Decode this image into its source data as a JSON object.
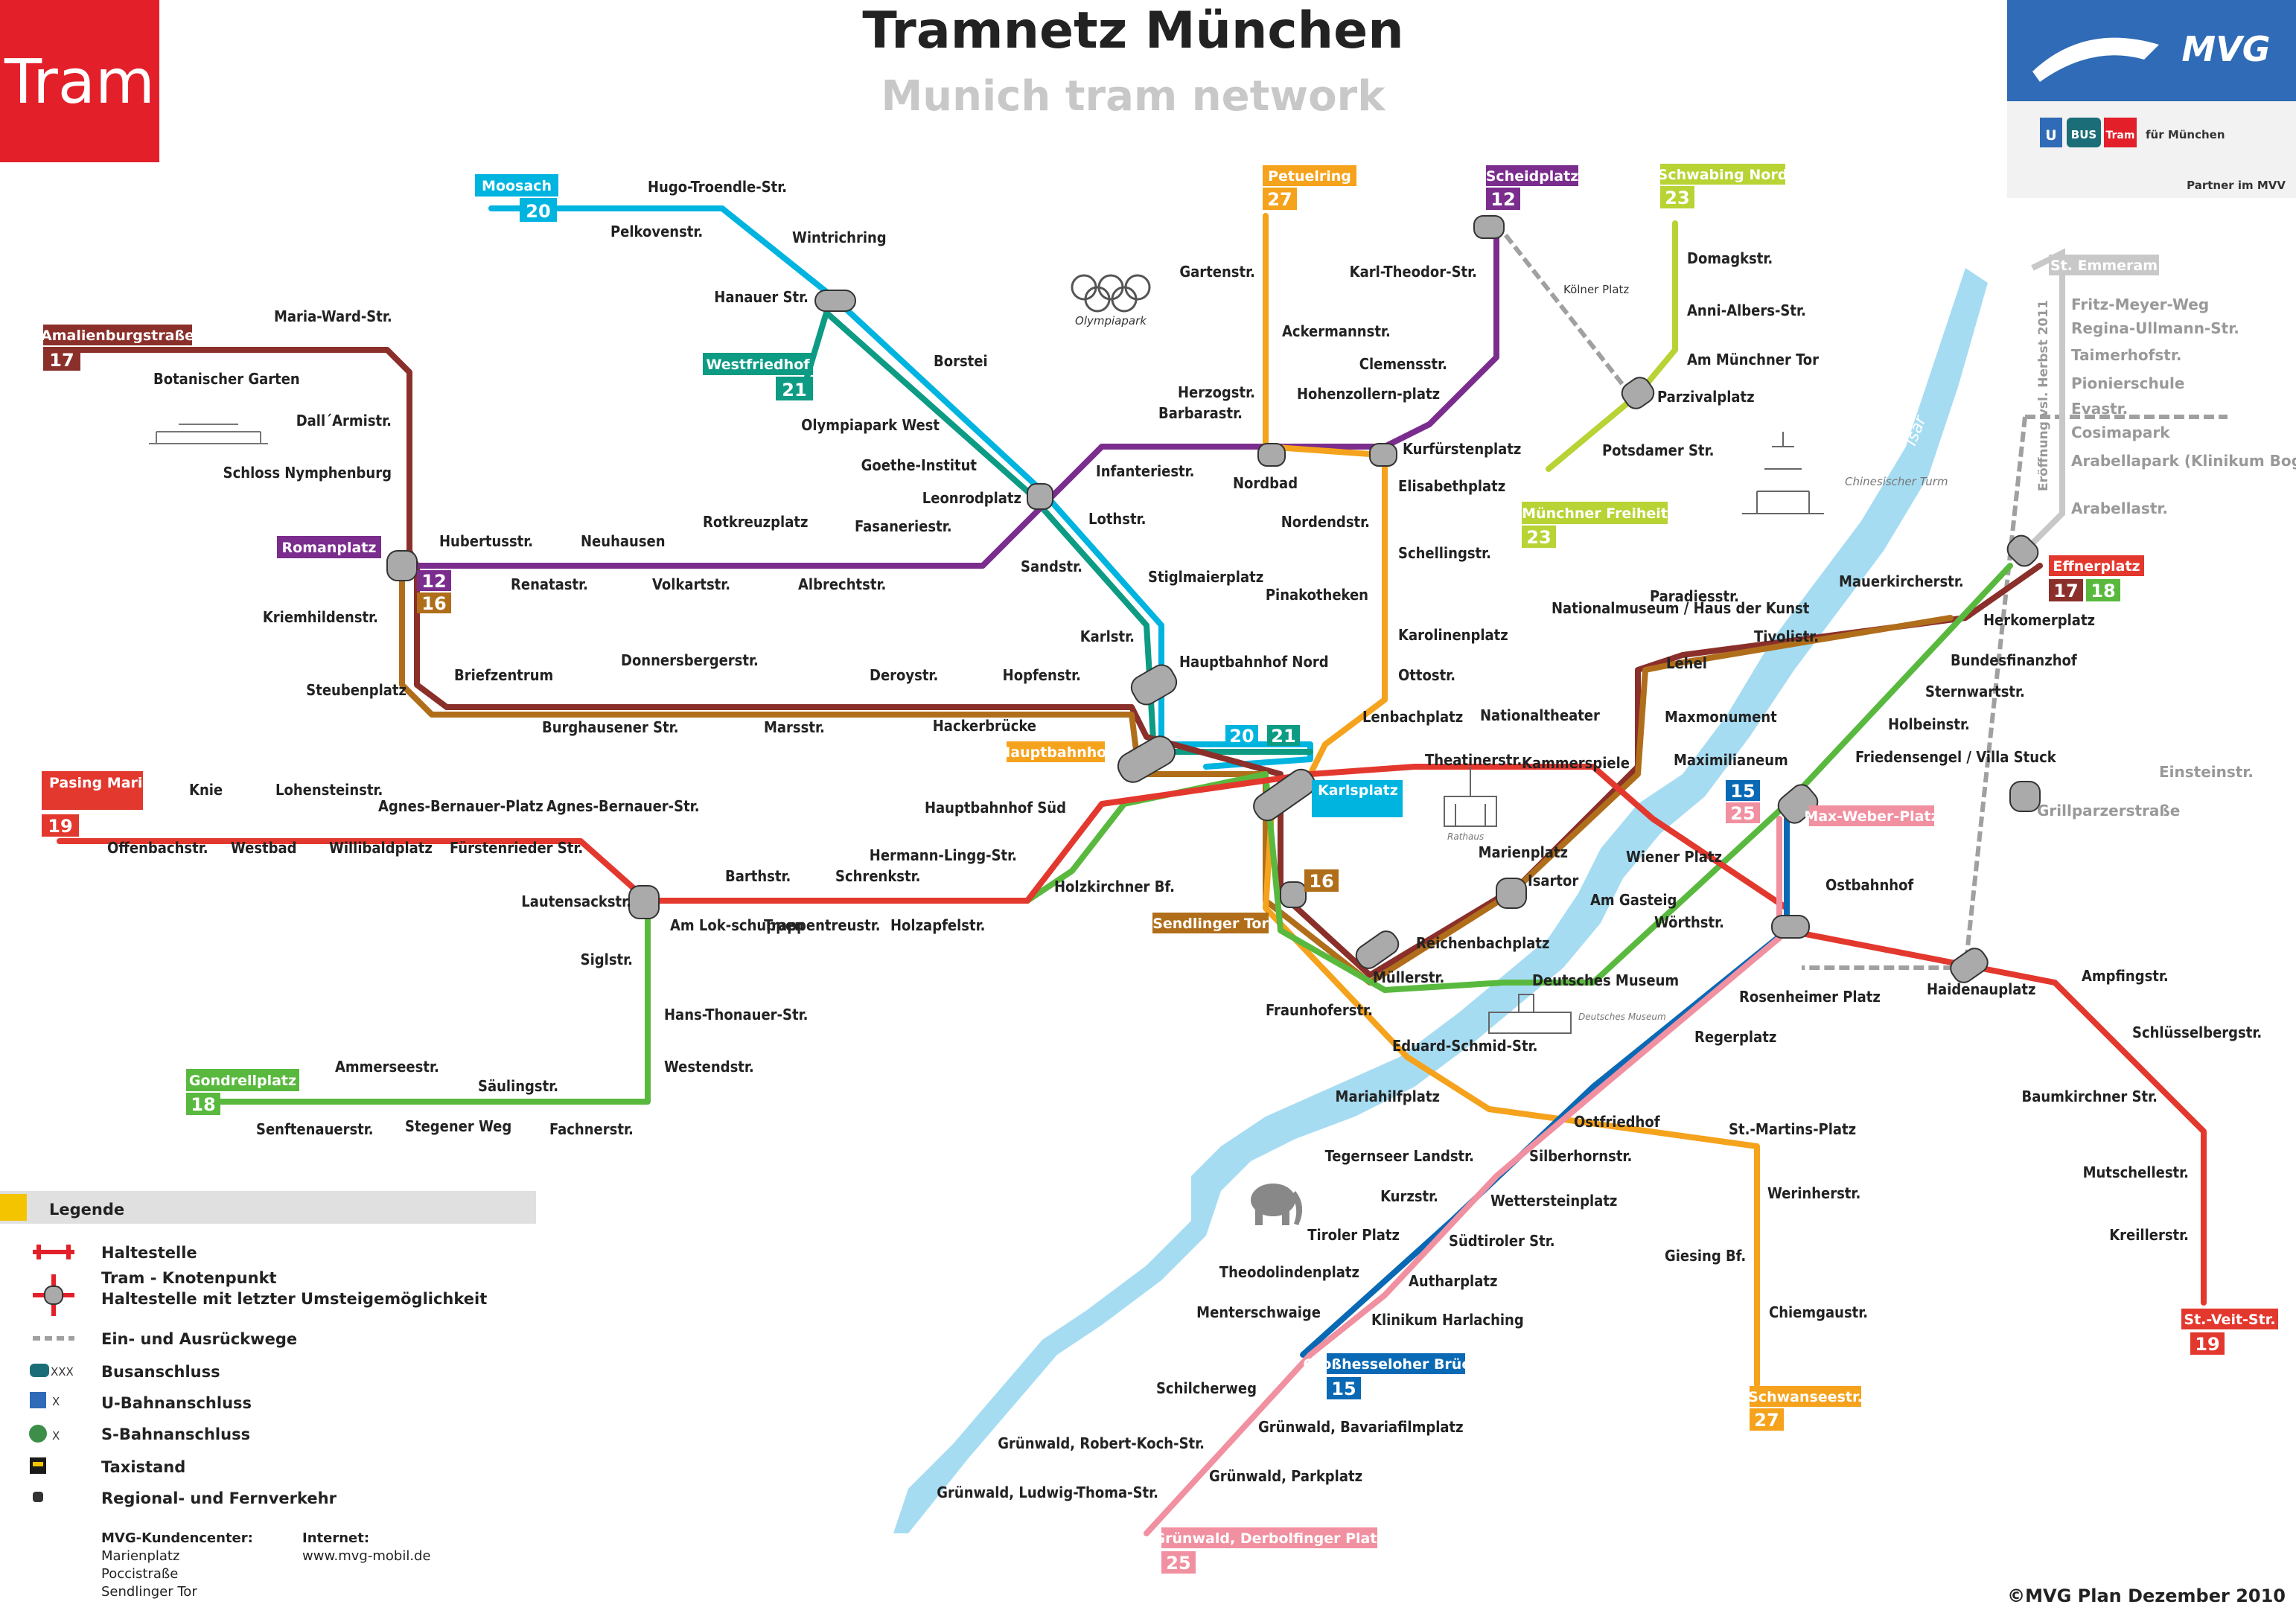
{
  "header": {
    "title": "Tramnetz München",
    "subtitle": "Munich tram network",
    "badge": "Tram",
    "logo_text": "MVG",
    "logo_tagline": "für München",
    "logo_modes": [
      "U",
      "BUS",
      "Tram"
    ],
    "partner": "Partner im MVV"
  },
  "colors": {
    "tram_red": "#e3202a",
    "line_12": "#7b2d8e",
    "line_16": "#b06e1b",
    "line_17": "#8b2f2a",
    "line_18": "#59b93e",
    "line_19": "#e3382e",
    "line_20": "#00b4e0",
    "line_21": "#0d9b84",
    "line_23": "#b7d334",
    "line_25": "#f190a0",
    "line_27": "#f5a21c",
    "line_15": "#0a69b4",
    "isar": "#a6dcf2",
    "depot_grey": "#a0a0a0"
  },
  "termini": [
    {
      "name": "Moosach",
      "lines": [
        "20"
      ]
    },
    {
      "name": "Amalienburgstraße",
      "lines": [
        "17"
      ]
    },
    {
      "name": "Westfriedhof",
      "lines": [
        "21"
      ]
    },
    {
      "name": "Romanplatz",
      "lines": [
        "12",
        "16"
      ]
    },
    {
      "name": "Petuelring",
      "lines": [
        "27"
      ]
    },
    {
      "name": "Scheidplatz",
      "lines": [
        "12"
      ]
    },
    {
      "name": "Schwabing Nord",
      "lines": [
        "23"
      ]
    },
    {
      "name": "Münchner Freiheit",
      "lines": [
        "23"
      ]
    },
    {
      "name": "Pasing Marienplatz",
      "lines": [
        "19"
      ]
    },
    {
      "name": "Gondrellplatz",
      "lines": [
        "18"
      ]
    },
    {
      "name": "Effnerplatz",
      "lines": [
        "17",
        "18"
      ]
    },
    {
      "name": "Sendlinger Tor",
      "lines": [
        "16"
      ]
    },
    {
      "name": "Karlsplatz (Stachus)",
      "lines": []
    },
    {
      "name": "Hauptbahnhof",
      "lines": []
    },
    {
      "name": "Max-Weber-Platz",
      "lines": []
    },
    {
      "name": "Großhesseloher Brücke",
      "lines": [
        "15"
      ]
    },
    {
      "name": "Grünwald, Derbolfinger Platz",
      "lines": [
        "25"
      ]
    },
    {
      "name": "Schwanseestr.",
      "lines": [
        "27"
      ]
    },
    {
      "name": "St.-Veit-Str.",
      "lines": [
        "19"
      ]
    },
    {
      "name": "St. Emmeram",
      "lines": []
    }
  ],
  "stations": {
    "hugo_troendle": "Hugo-Troendle-Str.",
    "pelkovenstr": "Pelkovenstr.",
    "wintrichring": "Wintrichring",
    "hanauer": "Hanauer Str.",
    "borstei": "Borstei",
    "olympiapark_west": "Olympiapark West",
    "goethe_institut": "Goethe-Institut",
    "leonrodplatz": "Leonrodplatz",
    "lothstr": "Lothstr.",
    "sandstr": "Sandstr.",
    "stiglmaierplatz": "Stiglmaierplatz",
    "karlstr": "Karlstr.",
    "hbf_nord": "Hauptbahnhof Nord",
    "hopfenstr": "Hopfenstr.",
    "hackerbruecke": "Hackerbrücke",
    "hbf_sued": "Hauptbahnhof Süd",
    "hermann_lingg": "Hermann-Lingg-Str.",
    "holzkirchner": "Holzkirchner Bf.",
    "maria_ward": "Maria-Ward-Str.",
    "botanischer": "Botanischer Garten",
    "dall_armi": "Dall´Armistr.",
    "schloss": "Schloss Nymphenburg",
    "hubertusstr": "Hubertusstr.",
    "neuhausen": "Neuhausen",
    "rotkreuzplatz": "Rotkreuzplatz",
    "fasaneriestr": "Fasaneriestr.",
    "renatastr": "Renatastr.",
    "volkartstr": "Volkartstr.",
    "albrechtstr": "Albrechtstr.",
    "kriemhildenstr": "Kriemhildenstr.",
    "steubenplatz": "Steubenplatz",
    "briefzentrum": "Briefzentrum",
    "donnersberger": "Donnersbergerstr.",
    "deroystr": "Deroystr.",
    "burghausener": "Burghausener Str.",
    "marsstr": "Marsstr.",
    "infanteriestr": "Infanteriestr.",
    "herzogstr": "Herzogstr.",
    "barbarastr": "Barbarastr.",
    "nordbad": "Nordbad",
    "hohenzollernplatz": "Hohenzollern-platz",
    "kurfuerstenplatz": "Kurfürstenplatz",
    "gartenstr": "Gartenstr.",
    "ackermannstr": "Ackermannstr.",
    "karl_theodor": "Karl-Theodor-Str.",
    "clemensstr": "Clemensstr.",
    "koelner_platz": "Kölner Platz",
    "domagkstr": "Domagkstr.",
    "anni_albers": "Anni-Albers-Str.",
    "am_muenchner_tor": "Am Münchner Tor",
    "parzivalplatz": "Parzivalplatz",
    "potsdamer": "Potsdamer Str.",
    "elisabethplatz": "Elisabethplatz",
    "nordendstr": "Nordendstr.",
    "schellingstr": "Schellingstr.",
    "pinakotheken": "Pinakotheken",
    "karolinenplatz": "Karolinenplatz",
    "ottostr": "Ottostr.",
    "lenbachplatz": "Lenbachplatz",
    "nationaltheater": "Nationaltheater",
    "theatinerstr": "Theatinerstr.",
    "kammerspiele": "Kammerspiele",
    "maxmonument": "Maxmonument",
    "maximilianeum": "Maximilianeum",
    "marienplatz": "Marienplatz",
    "isartor": "Isartor",
    "am_gasteig": "Am Gasteig",
    "wiener_platz": "Wiener Platz",
    "reichenbachplatz": "Reichenbachplatz",
    "muellerstr": "Müllerstr.",
    "deutsches_museum": "Deutsches Museum",
    "fraunhoferstr": "Fraunhoferstr.",
    "eduard_schmid": "Eduard-Schmid-Str.",
    "mariahilfplatz": "Mariahilfplatz",
    "woerthstr": "Wörthstr.",
    "rosenheimer": "Rosenheimer Platz",
    "regerplatz": "Regerplatz",
    "ostfriedhof": "Ostfriedhof",
    "st_martins": "St.-Martins-Platz",
    "tegernseer": "Tegernseer Landstr.",
    "silberhornstr": "Silberhornstr.",
    "kurzstr": "Kurzstr.",
    "wettersteinplatz": "Wettersteinplatz",
    "tiroler": "Tiroler Platz",
    "suedtiroler": "Südtiroler Str.",
    "theodolindenplatz": "Theodolindenplatz",
    "autharipatz": "Autharplatz",
    "menterschwaige": "Menterschwaige",
    "klinikum_harlaching": "Klinikum Harlaching",
    "schilcherweg": "Schilcherweg",
    "gw_bavaria": "Grünwald, Bavariafilmplatz",
    "gw_robert": "Grünwald, Robert-Koch-Str.",
    "gw_parkplatz": "Grünwald, Parkplatz",
    "gw_ludwig": "Grünwald, Ludwig-Thoma-Str.",
    "werinherstr": "Werinherstr.",
    "giesing": "Giesing Bf.",
    "chiemgaustr": "Chiemgaustr.",
    "nationalmuseum": "Nationalmuseum / Haus der Kunst",
    "paradiesstr": "Paradiesstr.",
    "lehel": "Lehel",
    "tivolistr": "Tivolistr.",
    "mauerkircherstr": "Mauerkircherstr.",
    "herkomerplatz": "Herkomerplatz",
    "bundesfinanzhof": "Bundesfinanzhof",
    "sternwartstr": "Sternwartstr.",
    "holbeinstr": "Holbeinstr.",
    "friedensengel": "Friedensengel / Villa Stuck",
    "einsteinstr": "Einsteinstr.",
    "grillparzer": "Grillparzerstraße",
    "ostbahnhof": "Ostbahnhof",
    "haidenauplatz": "Haidenauplatz",
    "ampfingstr": "Ampfingstr.",
    "schluesselberg": "Schlüsselbergstr.",
    "baumkirchner": "Baumkirchner Str.",
    "mutschellestr": "Mutschellestr.",
    "kreillerstr": "Kreillerstr.",
    "knie": "Knie",
    "lohensteinstr": "Lohensteinstr.",
    "agnes_bernauer_platz": "Agnes-Bernauer-Platz",
    "agnes_bernauer_str": "Agnes-Bernauer-Str.",
    "offenbachstr": "Offenbachstr.",
    "westbad": "Westbad",
    "willibaldplatz": "Willibaldplatz",
    "fuerstenrieder": "Fürstenrieder Str.",
    "lautensackstr": "Lautensackstr.",
    "barthstr": "Barthstr.",
    "schrenkstr": "Schrenkstr.",
    "am_lokschuppen": "Am Lok-schuppen",
    "trappentreustr": "Trappentreustr.",
    "holzapfelstr": "Holzapfelstr.",
    "siglstr": "Siglstr.",
    "hans_thonauer": "Hans-Thonauer-Str.",
    "westendstr": "Westendstr.",
    "ammerseestr": "Ammerseestr.",
    "saeulingstr": "Säulingstr.",
    "senftenauerstr": "Senftenauerstr.",
    "stegener": "Stegener Weg",
    "fachnerstr": "Fachnerstr.",
    "st_emmeram_stops": [
      "Fritz-Meyer-Weg",
      "Regina-Ullmann-Str.",
      "Taimerhofstr.",
      "Pionierschule",
      "Evastr.",
      "Cosimapark",
      "Arabellapark (Klinikum Bogenhausen)",
      "Arabellastr."
    ],
    "st_emmeram_note": "Eröffnung vsl. Herbst 2011"
  },
  "landmarks": {
    "olympiapark": "Olympiapark",
    "chinesischer_turm": "Chinesischer Turm",
    "rathaus": "Rathaus",
    "deutsches_museum": "Deutsches Museum",
    "isar": "Isar"
  },
  "legend": {
    "title": "Legende",
    "items": [
      "Haltestelle",
      "Tram - Knotenpunkt",
      "Haltestelle mit letzter Umsteigemöglichkeit",
      "Ein- und Ausrückwege",
      "Busanschluss",
      "U-Bahnanschluss",
      "S-Bahnanschluss",
      "Taxistand",
      "Regional- und Fernverkehr"
    ],
    "bus_code": "XXX",
    "rail_code": "X"
  },
  "footer": {
    "kundencenter_title": "MVG-Kundencenter:",
    "kundencenter": [
      "Marienplatz",
      "Poccistraße",
      "Sendlinger Tor"
    ],
    "internet_title": "Internet:",
    "internet": "www.mvg-mobil.de",
    "copyright": "©MVG   Plan Dezember 2010"
  }
}
